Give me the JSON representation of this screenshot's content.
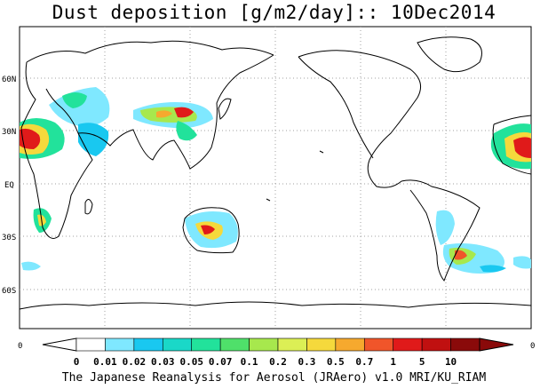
{
  "title": "Dust deposition [g/m2/day]:: 10Dec2014",
  "credit": "The Japanese Reanalysis for Aerosol (JRAero) v1.0 MRI/KU_RIAM",
  "lat_labels": [
    "60N",
    "30N",
    "EQ",
    "30S",
    "60S"
  ],
  "axis_end_labels": {
    "left": "0",
    "right": "0"
  },
  "colorbar": {
    "tick_labels": [
      "0",
      "0.01",
      "0.02",
      "0.03",
      "0.05",
      "0.07",
      "0.1",
      "0.2",
      "0.3",
      "0.5",
      "0.7",
      "1",
      "5",
      "10"
    ],
    "colors": [
      "#ffffff",
      "#7fe8ff",
      "#19c8f0",
      "#1ad8c8",
      "#22e29b",
      "#4fe06a",
      "#a7e84d",
      "#dcef55",
      "#f5d93c",
      "#f6a92e",
      "#f0552a",
      "#e01a1a",
      "#c01010",
      "#8a0a0a"
    ]
  },
  "colors": {
    "land_outline": "#000000",
    "grid": "#a0a0a0",
    "frame": "#000000"
  }
}
